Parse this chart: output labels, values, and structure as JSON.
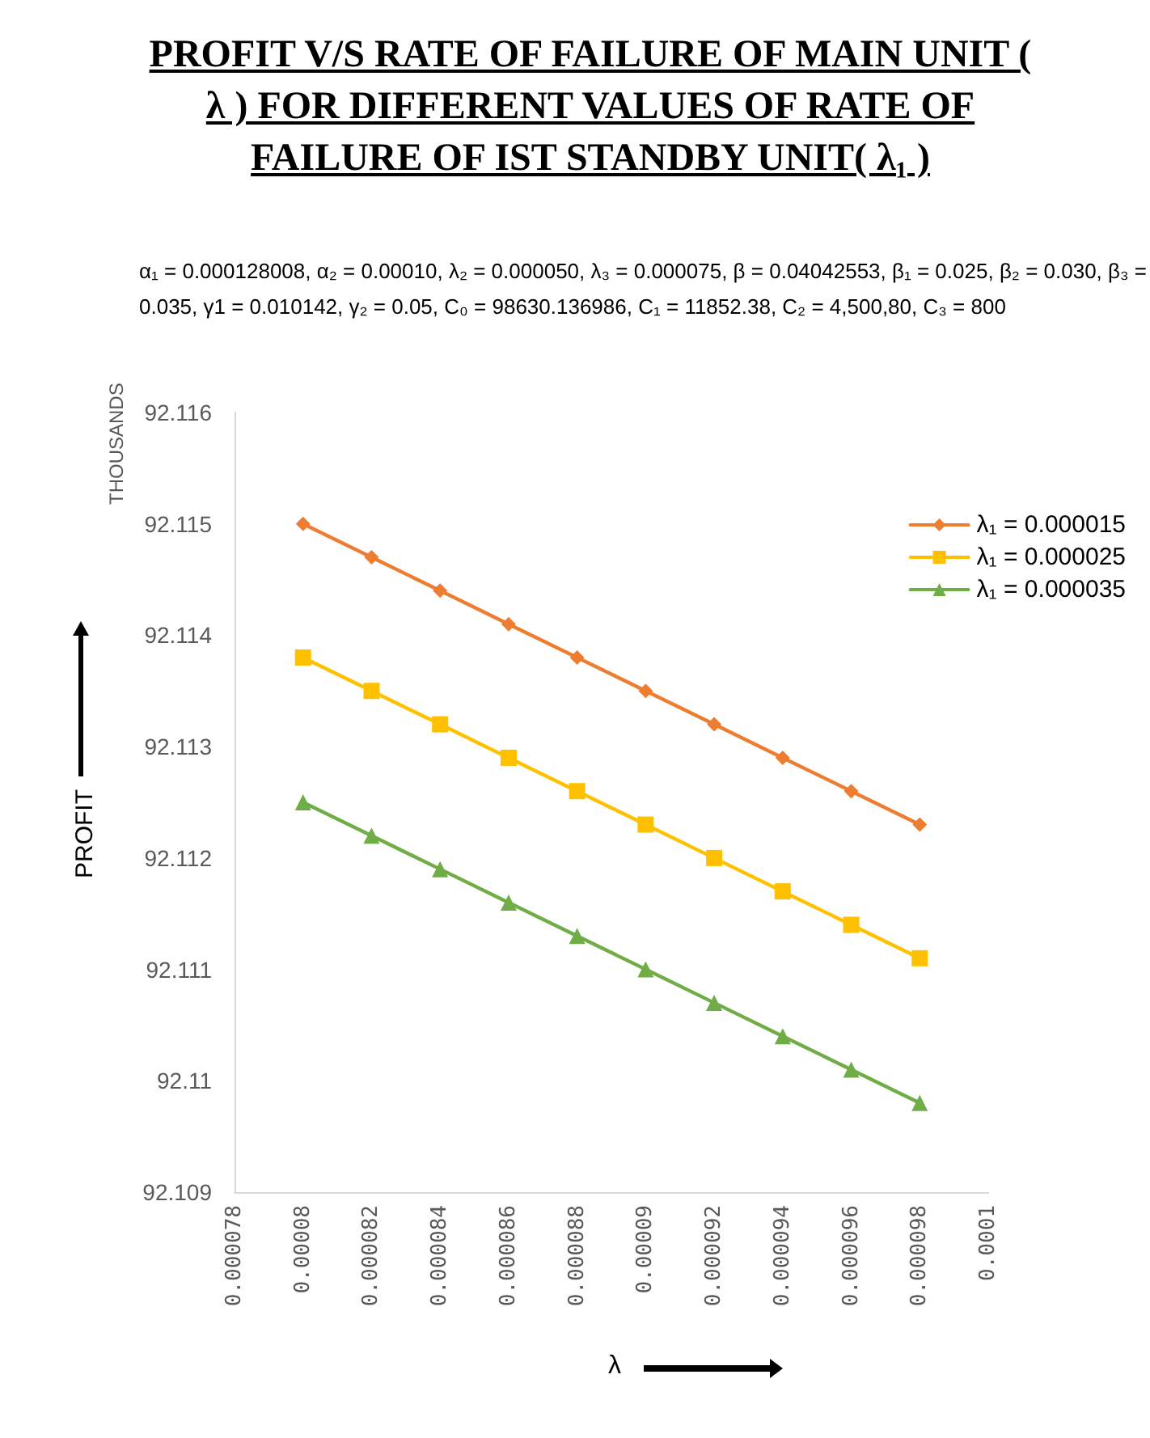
{
  "chart_data": {
    "type": "line",
    "title": "PROFIT V/S RATE OF FAILURE OF MAIN UNIT ( λ ) FOR  DIFFERENT VALUES OF RATE  OF FAILURE OF IST STANDBY UNIT( λ₁ )",
    "subtitle": "α₁ = 0.000128008, α₂ = 0.00010,  λ₂ = 0.000050, λ₃ = 0.000075, β = 0.04042553, β₁ = 0.025, β₂ = 0.030, β₃ = 0.035, γ1 = 0.010142, γ₂ = 0.05, C₀ = 98630.136986, C₁ = 11852.38, C₂ = 4,500,80, C₃ = 800",
    "xlabel": "λ",
    "ylabel": "PROFIT",
    "annotations": [
      "THOUSANDS"
    ],
    "x": [
      8e-05,
      8.2e-05,
      8.4e-05,
      8.6e-05,
      8.8e-05,
      9e-05,
      9.2e-05,
      9.4e-05,
      9.6e-05,
      9.8e-05
    ],
    "series": [
      {
        "name": "λ₁ = 0.000015",
        "color": "#ed7d31",
        "marker": "diamond",
        "values": [
          92.115,
          92.1147,
          92.1144,
          92.1141,
          92.1138,
          92.1135,
          92.1132,
          92.1129,
          92.1126,
          92.1123
        ]
      },
      {
        "name": "λ₁ = 0.000025",
        "color": "#ffc000",
        "marker": "square",
        "values": [
          92.1138,
          92.1135,
          92.1132,
          92.1129,
          92.1126,
          92.1123,
          92.112,
          92.1117,
          92.1114,
          92.1111
        ]
      },
      {
        "name": "λ₁ = 0.000035",
        "color": "#70ad47",
        "marker": "triangle",
        "values": [
          92.1125,
          92.1122,
          92.1119,
          92.1116,
          92.1113,
          92.111,
          92.1107,
          92.1104,
          92.1101,
          92.1098
        ]
      }
    ],
    "xlim": [
      7.8e-05,
      0.0001
    ],
    "xticks": [
      {
        "value": 7.8e-05,
        "label": "0.000078"
      },
      {
        "value": 8e-05,
        "label": "0.00008"
      },
      {
        "value": 8.2e-05,
        "label": "0.000082"
      },
      {
        "value": 8.4e-05,
        "label": "0.000084"
      },
      {
        "value": 8.6e-05,
        "label": "0.000086"
      },
      {
        "value": 8.8e-05,
        "label": "0.000088"
      },
      {
        "value": 9e-05,
        "label": "0.00009"
      },
      {
        "value": 9.2e-05,
        "label": "0.000092"
      },
      {
        "value": 9.4e-05,
        "label": "0.000094"
      },
      {
        "value": 9.6e-05,
        "label": "0.000096"
      },
      {
        "value": 9.8e-05,
        "label": "0.000098"
      },
      {
        "value": 0.0001,
        "label": "0.0001"
      }
    ],
    "ylim": [
      92.109,
      92.116
    ],
    "yticks": [
      92.109,
      92.11,
      92.111,
      92.112,
      92.113,
      92.114,
      92.115,
      92.116
    ],
    "grid": false,
    "legend": "top right",
    "line_style": "solid"
  }
}
